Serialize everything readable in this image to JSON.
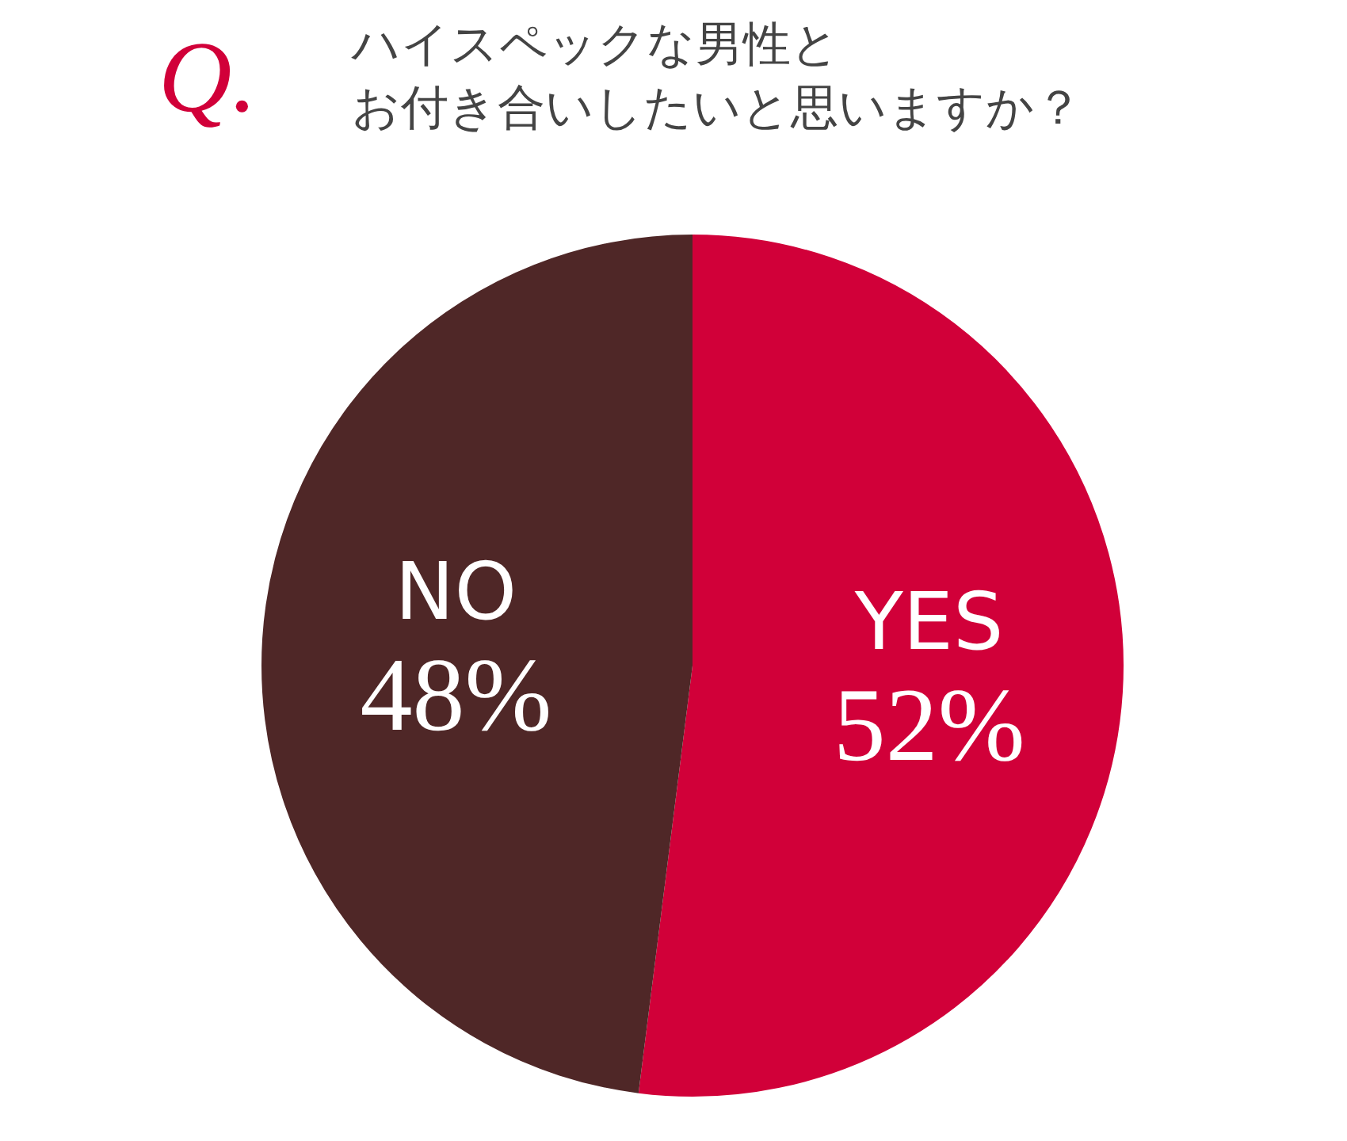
{
  "chart_data": {
    "type": "pie",
    "title": "ハイスペックな男性と",
    "subtitle": "お付き合いしたいと思いますか？",
    "annotations": [
      "Q."
    ],
    "categories": [
      "YES",
      "NO"
    ],
    "values": [
      52,
      48
    ],
    "colors": [
      "#d10039",
      "#4f2727"
    ],
    "value_labels": [
      "52%",
      "48%"
    ]
  }
}
